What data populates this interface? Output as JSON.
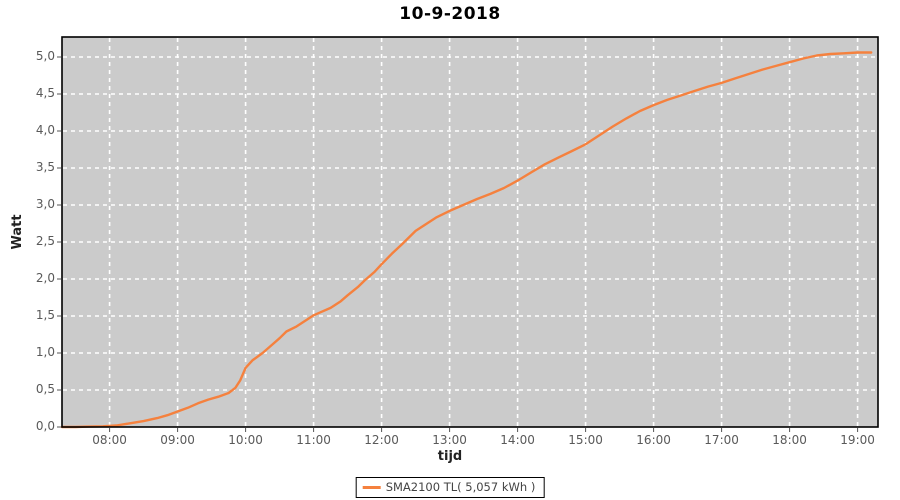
{
  "chart_data": {
    "type": "line",
    "title": "10-9-2018",
    "xlabel": "tijd",
    "ylabel": "Watt",
    "plot_background": "#cbcbcb",
    "grid_color": "#ffffff",
    "grid_style": "dashed",
    "border_color": "#000000",
    "tick_label_color": "#595959",
    "xlim_hours": [
      7.3,
      19.3
    ],
    "ylim": [
      0,
      5.27
    ],
    "x_ticks": [
      {
        "label": "08:00",
        "hour": 8
      },
      {
        "label": "09:00",
        "hour": 9
      },
      {
        "label": "10:00",
        "hour": 10
      },
      {
        "label": "11:00",
        "hour": 11
      },
      {
        "label": "12:00",
        "hour": 12
      },
      {
        "label": "13:00",
        "hour": 13
      },
      {
        "label": "14:00",
        "hour": 14
      },
      {
        "label": "15:00",
        "hour": 15
      },
      {
        "label": "16:00",
        "hour": 16
      },
      {
        "label": "17:00",
        "hour": 17
      },
      {
        "label": "18:00",
        "hour": 18
      },
      {
        "label": "19:00",
        "hour": 19
      }
    ],
    "y_ticks": [
      {
        "label": "0,0",
        "value": 0.0
      },
      {
        "label": "0,5",
        "value": 0.5
      },
      {
        "label": "1,0",
        "value": 1.0
      },
      {
        "label": "1,5",
        "value": 1.5
      },
      {
        "label": "2,0",
        "value": 2.0
      },
      {
        "label": "2,5",
        "value": 2.5
      },
      {
        "label": "3,0",
        "value": 3.0
      },
      {
        "label": "3,5",
        "value": 3.5
      },
      {
        "label": "4,0",
        "value": 4.0
      },
      {
        "label": "4,5",
        "value": 4.5
      },
      {
        "label": "5,0",
        "value": 5.0
      }
    ],
    "legend": {
      "label": "SMA2100 TL( 5,057 kWh )",
      "position": "bottom-center"
    },
    "series": [
      {
        "name": "SMA2100 TL",
        "total_kwh_label": "5,057 kWh",
        "color": "#f5813e",
        "points": [
          [
            7.3,
            0.0
          ],
          [
            7.5,
            0.0
          ],
          [
            7.7,
            0.005
          ],
          [
            7.9,
            0.01
          ],
          [
            8.1,
            0.02
          ],
          [
            8.3,
            0.05
          ],
          [
            8.5,
            0.08
          ],
          [
            8.7,
            0.12
          ],
          [
            8.85,
            0.16
          ],
          [
            9.0,
            0.21
          ],
          [
            9.15,
            0.26
          ],
          [
            9.3,
            0.32
          ],
          [
            9.45,
            0.37
          ],
          [
            9.6,
            0.41
          ],
          [
            9.75,
            0.46
          ],
          [
            9.85,
            0.53
          ],
          [
            9.92,
            0.63
          ],
          [
            10.0,
            0.8
          ],
          [
            10.1,
            0.9
          ],
          [
            10.25,
            1.0
          ],
          [
            10.4,
            1.12
          ],
          [
            10.5,
            1.2
          ],
          [
            10.6,
            1.29
          ],
          [
            10.75,
            1.36
          ],
          [
            10.9,
            1.45
          ],
          [
            11.0,
            1.51
          ],
          [
            11.1,
            1.55
          ],
          [
            11.25,
            1.61
          ],
          [
            11.4,
            1.7
          ],
          [
            11.5,
            1.78
          ],
          [
            11.65,
            1.89
          ],
          [
            11.75,
            1.98
          ],
          [
            11.9,
            2.1
          ],
          [
            12.0,
            2.2
          ],
          [
            12.15,
            2.34
          ],
          [
            12.3,
            2.47
          ],
          [
            12.5,
            2.65
          ],
          [
            12.65,
            2.74
          ],
          [
            12.8,
            2.83
          ],
          [
            13.0,
            2.92
          ],
          [
            13.2,
            3.0
          ],
          [
            13.4,
            3.08
          ],
          [
            13.6,
            3.15
          ],
          [
            13.8,
            3.23
          ],
          [
            14.0,
            3.33
          ],
          [
            14.2,
            3.44
          ],
          [
            14.4,
            3.55
          ],
          [
            14.6,
            3.64
          ],
          [
            14.8,
            3.73
          ],
          [
            15.0,
            3.82
          ],
          [
            15.2,
            3.94
          ],
          [
            15.4,
            4.06
          ],
          [
            15.6,
            4.17
          ],
          [
            15.8,
            4.27
          ],
          [
            16.0,
            4.35
          ],
          [
            16.2,
            4.42
          ],
          [
            16.4,
            4.48
          ],
          [
            16.6,
            4.54
          ],
          [
            16.8,
            4.6
          ],
          [
            17.0,
            4.65
          ],
          [
            17.2,
            4.71
          ],
          [
            17.4,
            4.77
          ],
          [
            17.6,
            4.83
          ],
          [
            17.8,
            4.88
          ],
          [
            18.0,
            4.93
          ],
          [
            18.2,
            4.98
          ],
          [
            18.4,
            5.02
          ],
          [
            18.6,
            5.04
          ],
          [
            18.8,
            5.05
          ],
          [
            19.0,
            5.06
          ],
          [
            19.2,
            5.06
          ]
        ]
      }
    ]
  }
}
